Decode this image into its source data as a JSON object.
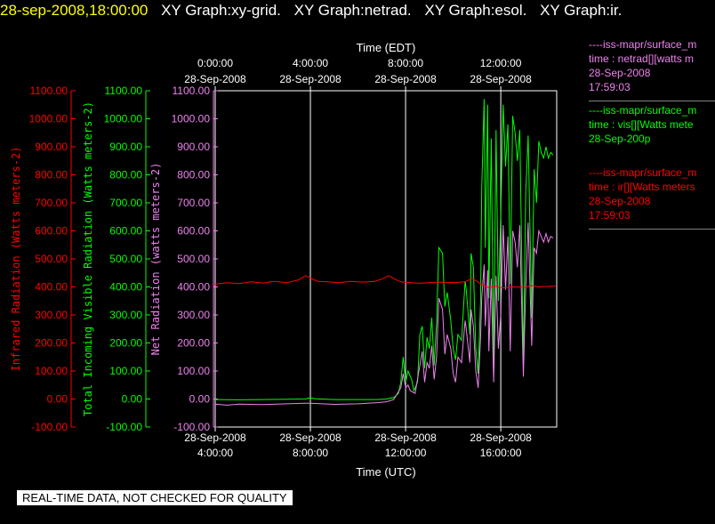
{
  "header": {
    "timestamp": "28-sep-2008,18:00:00",
    "graph_titles": [
      "XY Graph:xy-grid.",
      "XY Graph:netrad.",
      "XY Graph:esol.",
      "XY Graph:ir."
    ]
  },
  "disclaimer": "REAL-TIME DATA, NOT CHECKED FOR QUALITY",
  "legend": [
    {
      "lines": [
        "----iss-mapr/surface_m",
        "time : netrad[][watts m",
        "28-Sep-2008",
        "17:59:03"
      ],
      "color": "#ee82ee"
    },
    {
      "lines": [
        "----iss-mapr/surface_m",
        "time : vis[][Watts mete",
        "28-Sep-200p"
      ],
      "color": "#00ff00"
    },
    {
      "lines": [
        "----iss-mapr/surface_m",
        "time : ir[][Watts meters",
        "28-Sep-2008",
        "17:59:03"
      ],
      "color": "#ff0000"
    }
  ],
  "chart_data": {
    "type": "line",
    "top_axis": {
      "label": "Time (EDT)",
      "ticks": [
        {
          "x": 4,
          "l1": "0:00:00",
          "l2": "28-Sep-2008"
        },
        {
          "x": 8,
          "l1": "4:00:00",
          "l2": "28-Sep-2008"
        },
        {
          "x": 12,
          "l1": "8:00:00",
          "l2": "28-Sep-2008"
        },
        {
          "x": 16,
          "l1": "12:00:00",
          "l2": "28-Sep-2008"
        }
      ]
    },
    "bottom_axis": {
      "label": "Time (UTC)",
      "ticks": [
        {
          "x": 4,
          "l1": "28-Sep-2008",
          "l2": "4:00:00"
        },
        {
          "x": 8,
          "l1": "28-Sep-2008",
          "l2": "8:00:00"
        },
        {
          "x": 12,
          "l1": "28-Sep-2008",
          "l2": "12:00:00"
        },
        {
          "x": 16,
          "l1": "28-Sep-2008",
          "l2": "16:00:00"
        }
      ]
    },
    "xlim": [
      4,
      18.35
    ],
    "ylim": [
      -100,
      1100
    ],
    "y_ticks": [
      "1100.00",
      "1000.00",
      "900.00",
      "800.00",
      "700.00",
      "600.00",
      "500.00",
      "400.00",
      "300.00",
      "200.00",
      "100.00",
      "0.00",
      "-100.00"
    ],
    "y_axes": [
      {
        "label": "Infrared Radiation (Watts meters-2)",
        "color": "#ff0000"
      },
      {
        "label": "Total Incoming Visible Radiation (Watts meters-2)",
        "color": "#00ff00"
      },
      {
        "label": "Net Radiation (watts meters-2)",
        "color": "#ee82ee"
      }
    ],
    "grid": true,
    "series": [
      {
        "color": "#00ff00",
        "points": [
          [
            4,
            -2
          ],
          [
            5,
            -3
          ],
          [
            6,
            -2
          ],
          [
            7,
            -1
          ],
          [
            7.8,
            0
          ],
          [
            7.9,
            3
          ],
          [
            8.0,
            4
          ],
          [
            8.2,
            1
          ],
          [
            9,
            -2
          ],
          [
            10,
            -2
          ],
          [
            10.8,
            -2
          ],
          [
            11.2,
            0
          ],
          [
            11.5,
            5
          ],
          [
            11.7,
            20
          ],
          [
            11.8,
            60
          ],
          [
            11.9,
            150
          ],
          [
            12.0,
            60
          ],
          [
            12.1,
            100
          ],
          [
            12.25,
            70
          ],
          [
            12.35,
            30
          ],
          [
            12.5,
            60
          ],
          [
            12.6,
            230
          ],
          [
            12.7,
            260
          ],
          [
            12.8,
            110
          ],
          [
            12.9,
            220
          ],
          [
            13.0,
            180
          ],
          [
            13.1,
            290
          ],
          [
            13.2,
            120
          ],
          [
            13.3,
            270
          ],
          [
            13.4,
            540
          ],
          [
            13.55,
            520
          ],
          [
            13.65,
            330
          ],
          [
            13.75,
            380
          ],
          [
            13.9,
            280
          ],
          [
            14.0,
            180
          ],
          [
            14.1,
            140
          ],
          [
            14.2,
            230
          ],
          [
            14.35,
            210
          ],
          [
            14.5,
            420
          ],
          [
            14.55,
            390
          ],
          [
            14.7,
            230
          ],
          [
            14.75,
            520
          ],
          [
            14.85,
            470
          ],
          [
            14.95,
            180
          ],
          [
            15.05,
            90
          ],
          [
            15.15,
            350
          ],
          [
            15.2,
            750
          ],
          [
            15.3,
            1070
          ],
          [
            15.35,
            540
          ],
          [
            15.45,
            1050
          ],
          [
            15.5,
            360
          ],
          [
            15.6,
            930
          ],
          [
            15.7,
            130
          ],
          [
            15.8,
            960
          ],
          [
            15.9,
            350
          ],
          [
            16.0,
            660
          ],
          [
            16.1,
            1050
          ],
          [
            16.2,
            830
          ],
          [
            16.3,
            980
          ],
          [
            16.4,
            410
          ],
          [
            16.5,
            1010
          ],
          [
            16.6,
            950
          ],
          [
            16.7,
            850
          ],
          [
            16.8,
            960
          ],
          [
            16.95,
            130
          ],
          [
            17.05,
            740
          ],
          [
            17.15,
            940
          ],
          [
            17.3,
            290
          ],
          [
            17.4,
            820
          ],
          [
            17.5,
            700
          ],
          [
            17.6,
            920
          ],
          [
            17.7,
            880
          ],
          [
            17.8,
            860
          ],
          [
            17.9,
            900
          ],
          [
            18.0,
            860
          ],
          [
            18.1,
            880
          ],
          [
            18.2,
            870
          ]
        ]
      },
      {
        "color": "#ee82ee",
        "points": [
          [
            4,
            -18
          ],
          [
            4.5,
            -22
          ],
          [
            5,
            -18
          ],
          [
            6,
            -20
          ],
          [
            7,
            -17
          ],
          [
            7.8,
            -15
          ],
          [
            8,
            -15
          ],
          [
            9,
            -19
          ],
          [
            10,
            -17
          ],
          [
            10.8,
            -13
          ],
          [
            11.2,
            -10
          ],
          [
            11.5,
            -2
          ],
          [
            11.8,
            40
          ],
          [
            11.9,
            90
          ],
          [
            12.0,
            40
          ],
          [
            12.1,
            50
          ],
          [
            12.2,
            30
          ],
          [
            12.4,
            20
          ],
          [
            12.6,
            120
          ],
          [
            12.7,
            170
          ],
          [
            12.8,
            60
          ],
          [
            12.9,
            130
          ],
          [
            13.0,
            110
          ],
          [
            13.1,
            190
          ],
          [
            13.2,
            70
          ],
          [
            13.3,
            150
          ],
          [
            13.4,
            360
          ],
          [
            13.55,
            320
          ],
          [
            13.65,
            160
          ],
          [
            13.75,
            230
          ],
          [
            13.9,
            180
          ],
          [
            14.0,
            90
          ],
          [
            14.1,
            60
          ],
          [
            14.2,
            150
          ],
          [
            14.35,
            130
          ],
          [
            14.5,
            280
          ],
          [
            14.55,
            250
          ],
          [
            14.7,
            130
          ],
          [
            14.75,
            320
          ],
          [
            14.85,
            260
          ],
          [
            14.95,
            100
          ],
          [
            15.05,
            40
          ],
          [
            15.15,
            220
          ],
          [
            15.2,
            360
          ],
          [
            15.3,
            480
          ],
          [
            15.35,
            260
          ],
          [
            15.45,
            460
          ],
          [
            15.5,
            170
          ],
          [
            15.6,
            430
          ],
          [
            15.7,
            60
          ],
          [
            15.8,
            440
          ],
          [
            15.9,
            180
          ],
          [
            16.0,
            300
          ],
          [
            16.1,
            620
          ],
          [
            16.2,
            390
          ],
          [
            16.3,
            580
          ],
          [
            16.4,
            170
          ],
          [
            16.5,
            600
          ],
          [
            16.6,
            560
          ],
          [
            16.7,
            470
          ],
          [
            16.8,
            620
          ],
          [
            16.95,
            80
          ],
          [
            17.05,
            400
          ],
          [
            17.15,
            630
          ],
          [
            17.3,
            190
          ],
          [
            17.4,
            540
          ],
          [
            17.5,
            520
          ],
          [
            17.6,
            600
          ],
          [
            17.7,
            580
          ],
          [
            17.8,
            560
          ],
          [
            17.9,
            590
          ],
          [
            18.0,
            560
          ],
          [
            18.1,
            580
          ],
          [
            18.2,
            575
          ]
        ]
      },
      {
        "color": "#ff0000",
        "points": [
          [
            4,
            410
          ],
          [
            4.5,
            415
          ],
          [
            5,
            412
          ],
          [
            5.5,
            418
          ],
          [
            6,
            414
          ],
          [
            6.5,
            420
          ],
          [
            7,
            415
          ],
          [
            7.5,
            425
          ],
          [
            7.8,
            440
          ],
          [
            8.0,
            432
          ],
          [
            8.3,
            420
          ],
          [
            8.7,
            418
          ],
          [
            9.2,
            415
          ],
          [
            9.7,
            420
          ],
          [
            10.2,
            417
          ],
          [
            10.7,
            420
          ],
          [
            11.0,
            428
          ],
          [
            11.3,
            440
          ],
          [
            11.5,
            430
          ],
          [
            11.8,
            418
          ],
          [
            12.2,
            415
          ],
          [
            12.6,
            413
          ],
          [
            13.0,
            415
          ],
          [
            13.5,
            417
          ],
          [
            14.0,
            415
          ],
          [
            14.5,
            418
          ],
          [
            14.8,
            430
          ],
          [
            15.0,
            420
          ],
          [
            15.2,
            408
          ],
          [
            15.5,
            398
          ],
          [
            15.8,
            402
          ],
          [
            16.1,
            396
          ],
          [
            16.5,
            400
          ],
          [
            17.0,
            398
          ],
          [
            17.3,
            405
          ],
          [
            17.6,
            400
          ],
          [
            18.0,
            402
          ],
          [
            18.3,
            403
          ]
        ]
      }
    ]
  }
}
